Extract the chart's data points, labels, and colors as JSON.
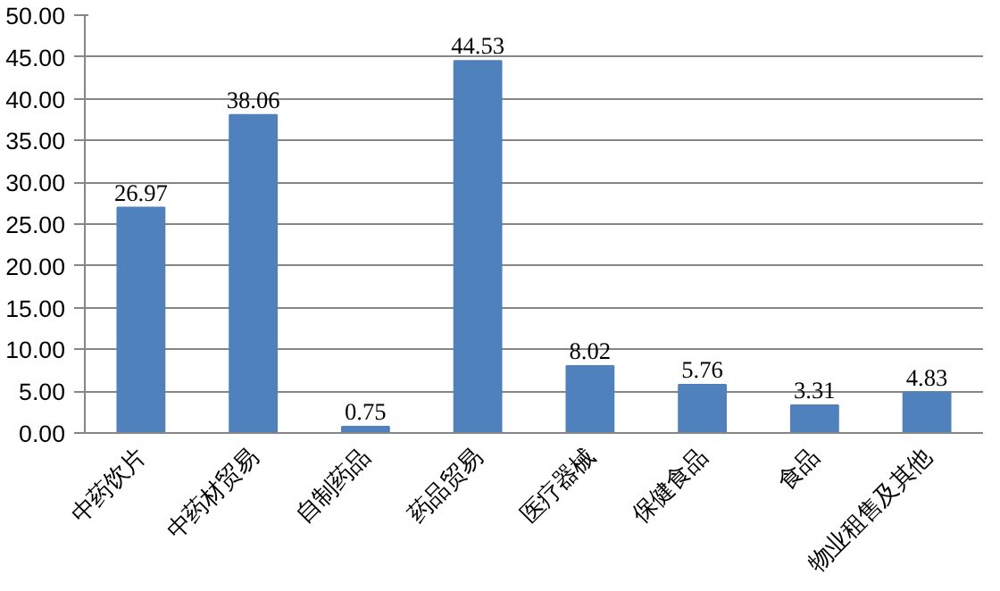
{
  "chart_data": {
    "type": "bar",
    "categories": [
      "中药饮片",
      "中药材贸易",
      "自制药品",
      "药品贸易",
      "医疗器械",
      "保健食品",
      "食品",
      "物业租售及其他"
    ],
    "values": [
      26.97,
      38.06,
      0.75,
      44.53,
      8.02,
      5.76,
      3.31,
      4.83
    ],
    "color": "#4f81bd",
    "ylim": [
      0,
      50
    ],
    "yticks": [
      {
        "value": 0,
        "label": "0.00"
      },
      {
        "value": 5,
        "label": "5.00"
      },
      {
        "value": 10,
        "label": "10.00"
      },
      {
        "value": 15,
        "label": "15.00"
      },
      {
        "value": 20,
        "label": "20.00"
      },
      {
        "value": 25,
        "label": "25.00"
      },
      {
        "value": 30,
        "label": "30.00"
      },
      {
        "value": 35,
        "label": "35.00"
      },
      {
        "value": 40,
        "label": "40.00"
      },
      {
        "value": 45,
        "label": "45.00"
      },
      {
        "value": 50,
        "label": "50.00"
      }
    ],
    "grid": "y",
    "data_labels": true
  }
}
